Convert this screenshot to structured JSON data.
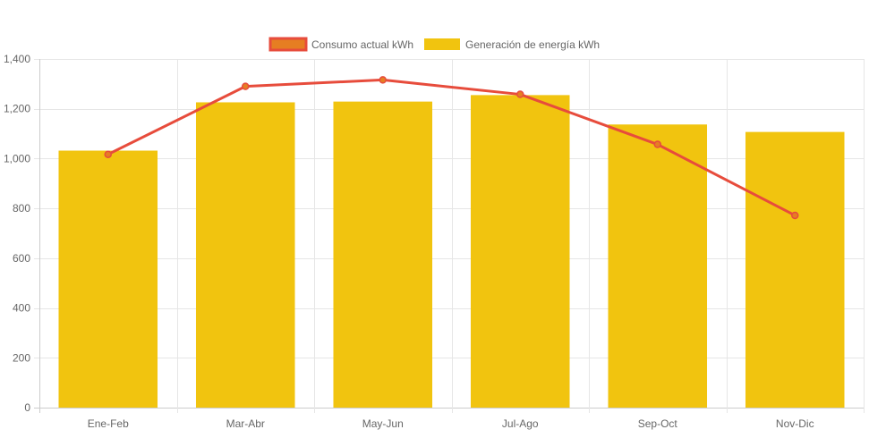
{
  "chart_data": {
    "type": "bar",
    "categories": [
      "Ene-Feb",
      "Mar-Abr",
      "May-Jun",
      "Jul-Ago",
      "Sep-Oct",
      "Nov-Dic"
    ],
    "series": [
      {
        "name": "Generación de energía kWh",
        "type": "bar",
        "values": [
          1032,
          1226,
          1229,
          1255,
          1137,
          1107
        ],
        "color": "#f1c40f"
      },
      {
        "name": "Consumo actual kWh",
        "type": "line",
        "values": [
          1017,
          1290,
          1316,
          1258,
          1057,
          772
        ],
        "color": "#e74c3c",
        "legend_fill": "#e67e22"
      }
    ],
    "yticks": [
      "0",
      "200",
      "400",
      "600",
      "800",
      "1,000",
      "1,200",
      "1,400"
    ],
    "ylim": [
      0,
      1400
    ],
    "grid": true,
    "legend_position": "top-center",
    "title": "",
    "xlabel": "",
    "ylabel": ""
  }
}
